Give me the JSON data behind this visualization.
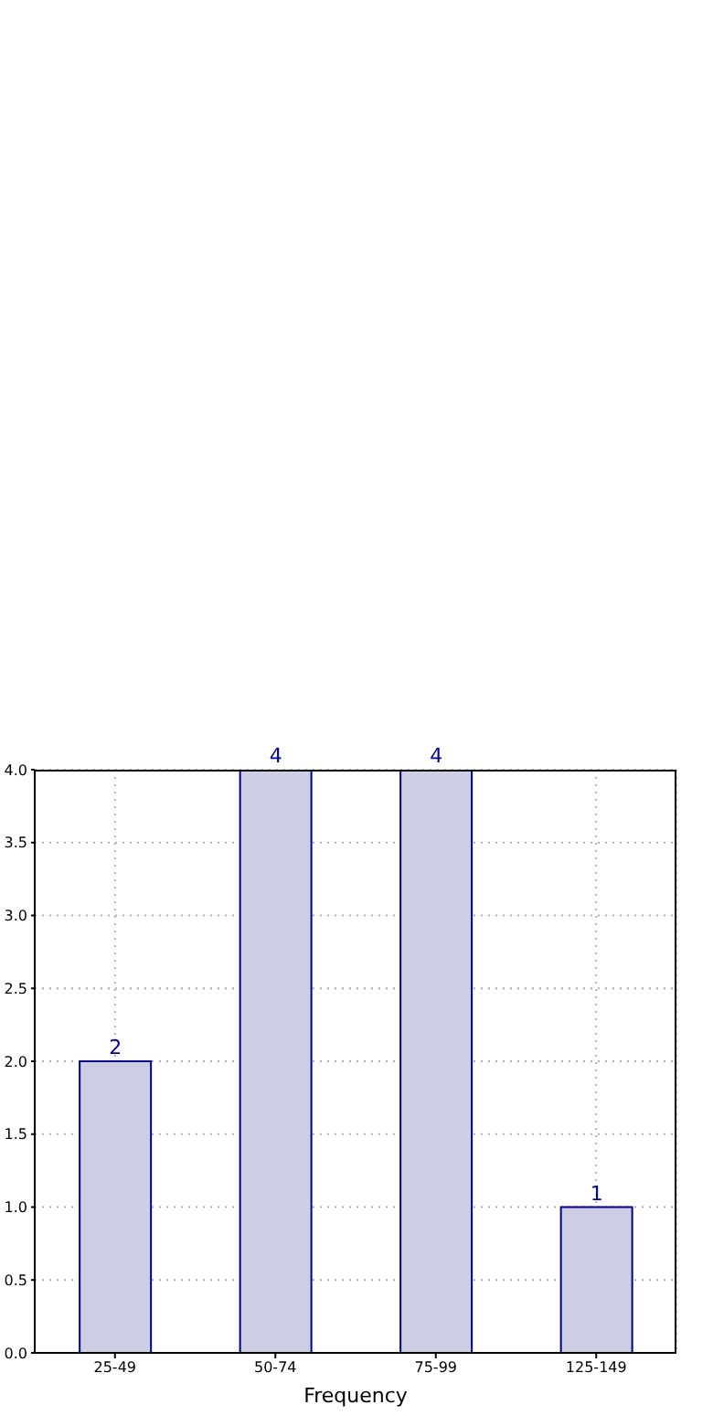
{
  "chart_data": {
    "type": "bar",
    "xlabel": "Frequency",
    "categories": [
      "25-49",
      "50-74",
      "75-99",
      "125-149"
    ],
    "values": [
      2,
      4,
      4,
      1
    ],
    "color": "#cdcde3",
    "ylim": [
      0,
      4
    ],
    "yticks": [
      {
        "value": 0,
        "label": "0.0"
      },
      {
        "value": 0.5,
        "label": "0.5"
      },
      {
        "value": 1,
        "label": "1.0"
      },
      {
        "value": 1.5,
        "label": "1.5"
      },
      {
        "value": 2,
        "label": "2.0"
      },
      {
        "value": 2.5,
        "label": "2.5"
      },
      {
        "value": 3,
        "label": "3.0"
      },
      {
        "value": 3.5,
        "label": "3.5"
      },
      {
        "value": 4,
        "label": "4.0"
      }
    ],
    "grid": true,
    "data_labels": true
  }
}
